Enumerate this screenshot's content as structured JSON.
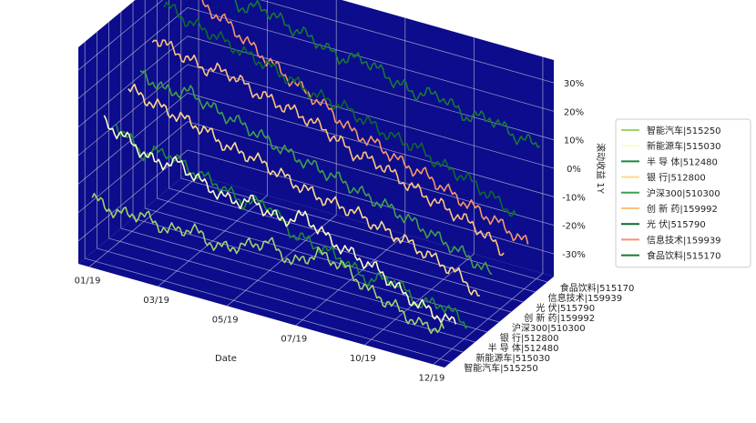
{
  "chart_data": {
    "type": "line",
    "subtype": "3d-ridge",
    "background": "#0c0c8c",
    "grid": true,
    "xlabel": "Date",
    "zlabel": "滚动收益 1Y",
    "x_ticks": [
      "01/19",
      "03/19",
      "05/19",
      "07/19",
      "10/19",
      "12/19"
    ],
    "z_ticks": [
      "-30%",
      "-20%",
      "-10%",
      "0%",
      "10%",
      "20%",
      "30%"
    ],
    "zlim": [
      -0.38,
      0.38
    ],
    "legend_position": "right",
    "series": [
      {
        "name": "智能汽车|515250",
        "color": "#9fd36a",
        "values": [
          -0.16,
          -0.19,
          -0.17,
          -0.2,
          -0.17,
          -0.21,
          -0.18,
          -0.14,
          -0.19,
          -0.13,
          -0.15,
          -0.21,
          -0.24,
          -0.28,
          -0.27
        ]
      },
      {
        "name": "新能源车|515030",
        "color": "#fdfbc8",
        "values": [
          0.07,
          0.03,
          -0.02,
          0.0,
          -0.05,
          -0.08,
          -0.06,
          -0.1,
          -0.06,
          -0.12,
          -0.15,
          -0.18,
          -0.24,
          -0.27,
          -0.29
        ]
      },
      {
        "name": "半 导 体|512480",
        "color": "#1a8a3a",
        "values": [
          0.03,
          -0.05,
          -0.02,
          -0.06,
          -0.08,
          -0.12,
          -0.1,
          -0.18,
          -0.2,
          -0.22,
          -0.27,
          -0.24,
          -0.3,
          -0.28,
          -0.33
        ]
      },
      {
        "name": "银  行|512800",
        "color": "#fed98b",
        "values": [
          0.12,
          0.09,
          0.07,
          0.05,
          0.01,
          0.0,
          -0.03,
          -0.06,
          -0.08,
          -0.09,
          -0.12,
          -0.14,
          -0.17,
          -0.2,
          -0.26
        ]
      },
      {
        "name": "沪深300|510300",
        "color": "#3fa04a",
        "values": [
          0.14,
          0.1,
          0.12,
          0.08,
          0.06,
          0.03,
          0.0,
          -0.02,
          -0.04,
          -0.07,
          -0.09,
          -0.12,
          -0.15,
          -0.18,
          -0.22
        ]
      },
      {
        "name": "创 新 药|159992",
        "color": "#fdc17a",
        "values": [
          0.23,
          0.2,
          0.17,
          0.18,
          0.14,
          0.12,
          0.1,
          0.07,
          0.02,
          0.01,
          -0.03,
          -0.06,
          -0.09,
          -0.12,
          -0.18
        ]
      },
      {
        "name": "光  伏|515790",
        "color": "#0c6a2c",
        "values": [
          0.31,
          0.27,
          0.25,
          0.22,
          0.2,
          0.17,
          0.14,
          0.13,
          0.1,
          0.07,
          0.06,
          0.02,
          0.0,
          -0.04,
          -0.08
        ]
      },
      {
        "name": "信息技术|159939",
        "color": "#f7956a",
        "values": [
          0.4,
          0.3,
          0.26,
          0.2,
          0.15,
          0.1,
          0.06,
          0.0,
          -0.02,
          -0.06,
          -0.08,
          -0.12,
          -0.15,
          -0.18,
          -0.22
        ]
      },
      {
        "name": "食品饮料|515170",
        "color": "#157a34",
        "values": [
          0.35,
          0.33,
          0.28,
          0.3,
          0.26,
          0.24,
          0.2,
          0.22,
          0.18,
          0.15,
          0.17,
          0.12,
          0.14,
          0.1,
          0.09
        ]
      }
    ]
  }
}
